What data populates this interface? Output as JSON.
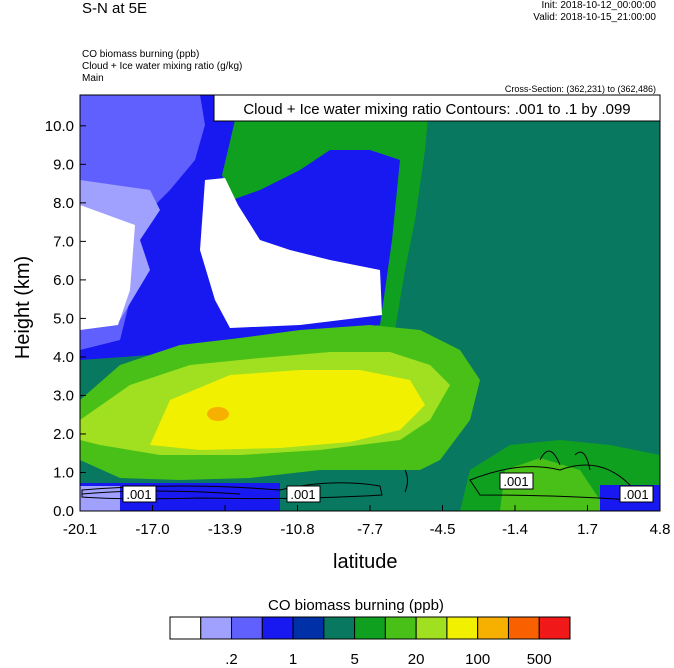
{
  "header": {
    "title": "S-N at 5E",
    "init": "Init: 2018-10-12_00:00:00",
    "valid": "Valid: 2018-10-15_21:00:00",
    "var1": "CO biomass burning   (ppb)",
    "var2": "Cloud + Ice water mixing ratio   (g/kg)",
    "var3": "Main",
    "cross_section": "Cross-Section: (362,231) to (362,486)"
  },
  "chart_data": {
    "type": "heatmap",
    "title": "S-N at 5E",
    "xlabel": "latitude",
    "ylabel": "Height (km)",
    "xlim": [
      -20.1,
      4.8
    ],
    "ylim": [
      0.0,
      10.8
    ],
    "x_ticks": [
      "-20.1",
      "-17.0",
      "-13.9",
      "-10.8",
      "-7.7",
      "-4.5",
      "-1.4",
      "1.7",
      "4.8"
    ],
    "y_ticks": [
      "0.0",
      "1.0",
      "2.0",
      "3.0",
      "4.0",
      "5.0",
      "6.0",
      "7.0",
      "8.0",
      "9.0",
      "10.0"
    ],
    "contour_title": "Cloud + Ice water mixing ratio Contours: .001 to .1 by .099",
    "contour_labels": [
      ".001",
      ".001",
      ".001",
      ".001"
    ],
    "colorbar": {
      "title": "CO biomass burning  (ppb)",
      "colors": [
        "#ffffff",
        "#a0a0ff",
        "#6060ff",
        "#1818f0",
        "#0030a8",
        "#087860",
        "#10a020",
        "#48c018",
        "#a0e020",
        "#f0f000",
        "#f8b000",
        "#f86000",
        "#f01818"
      ],
      "labels": [
        ".2",
        "1",
        "5",
        "20",
        "100",
        "500"
      ]
    }
  }
}
